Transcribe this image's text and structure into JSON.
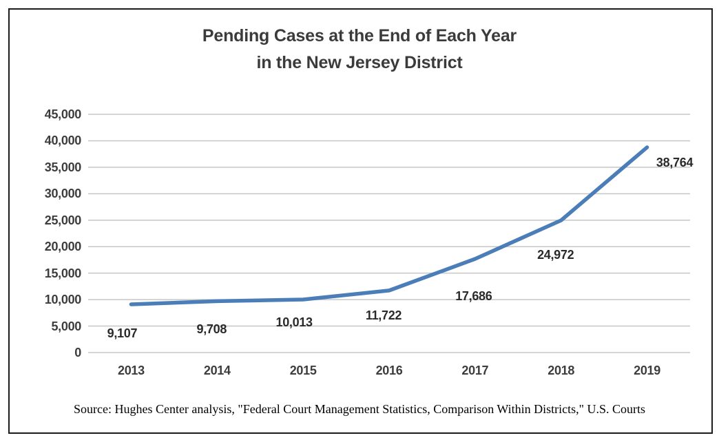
{
  "window": {
    "background": "#ffffff",
    "frame_border_color": "#1b1b1b"
  },
  "chart_data": {
    "type": "line",
    "title_lines": [
      "Pending Cases at the End of Each Year",
      "in the New Jersey District"
    ],
    "categories": [
      "2013",
      "2014",
      "2015",
      "2016",
      "2017",
      "2018",
      "2019"
    ],
    "series": [
      {
        "name": "Pending cases",
        "values": [
          9107,
          9708,
          10013,
          11722,
          17686,
          24972,
          38764
        ]
      }
    ],
    "data_labels": [
      "9,107",
      "9,708",
      "10,013",
      "11,722",
      "17,686",
      "24,972",
      "38,764"
    ],
    "xlabel": "",
    "ylabel": "",
    "ylim": [
      0,
      45000
    ],
    "ytick_step": 5000,
    "ytick_labels": [
      "0",
      "5,000",
      "10,000",
      "15,000",
      "20,000",
      "25,000",
      "30,000",
      "35,000",
      "40,000",
      "45,000"
    ],
    "grid": true,
    "legend": "none",
    "line_color": "#4b7eb8",
    "gridline_color": "#c6c6c6",
    "text_color": "#3d3d3d",
    "source": "Source: Hughes Center analysis, \"Federal Court Management Statistics, Comparison Within Districts,\" U.S. Courts"
  }
}
